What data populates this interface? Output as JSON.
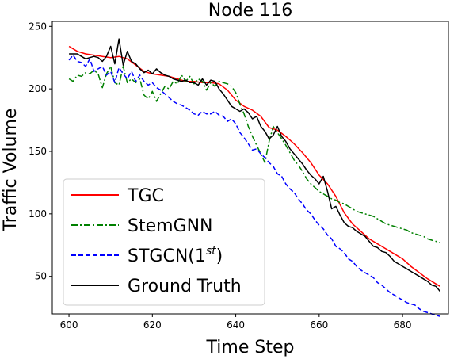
{
  "chart_data": {
    "type": "line",
    "title": "Node 116",
    "xlabel": "Time Step",
    "ylabel": "Traffic Volume",
    "xlim": [
      596,
      691
    ],
    "ylim": [
      20,
      254
    ],
    "xticks": [
      600,
      620,
      640,
      660,
      680
    ],
    "yticks": [
      50,
      100,
      150,
      200,
      250
    ],
    "grid": false,
    "legend_position": "lower-left",
    "series": [
      {
        "name": "TGC",
        "legend_label_main": "TGC",
        "color": "#ff0000",
        "dash": "solid",
        "x": [
          600,
          602,
          604,
          606,
          608,
          610,
          612,
          614,
          616,
          618,
          620,
          622,
          624,
          626,
          628,
          630,
          632,
          634,
          636,
          638,
          640,
          642,
          644,
          646,
          648,
          650,
          652,
          654,
          656,
          658,
          660,
          662,
          664,
          666,
          668,
          670,
          672,
          674,
          676,
          678,
          680,
          682,
          684,
          686,
          688,
          689
        ],
        "y": [
          234,
          230,
          228,
          227,
          226,
          225,
          226,
          224,
          219,
          214,
          212,
          211,
          210,
          208,
          206,
          206,
          205,
          205,
          204,
          199,
          191,
          186,
          183,
          178,
          169,
          167,
          162,
          156,
          149,
          141,
          131,
          124,
          114,
          101,
          92,
          86,
          80,
          76,
          72,
          68,
          64,
          58,
          53,
          48,
          44,
          42
        ]
      },
      {
        "name": "StemGNN",
        "legend_label_main": "StemGNN",
        "color": "#008000",
        "dash": "dashdot",
        "x": [
          600,
          601,
          602,
          603,
          604,
          605,
          606,
          607,
          608,
          609,
          610,
          611,
          612,
          613,
          614,
          615,
          616,
          617,
          618,
          619,
          620,
          621,
          622,
          623,
          624,
          625,
          626,
          627,
          628,
          629,
          630,
          631,
          632,
          633,
          634,
          635,
          636,
          637,
          638,
          639,
          640,
          641,
          642,
          643,
          644,
          645,
          646,
          647,
          648,
          649,
          650,
          651,
          652,
          653,
          654,
          655,
          656,
          657,
          658,
          659,
          660,
          661,
          662,
          663,
          664,
          665,
          666,
          667,
          668,
          669,
          670,
          671,
          672,
          673,
          674,
          675,
          676,
          677,
          678,
          679,
          680,
          681,
          682,
          683,
          684,
          685,
          686,
          687,
          688,
          689
        ],
        "y": [
          208,
          206,
          211,
          210,
          213,
          212,
          215,
          212,
          201,
          212,
          218,
          205,
          203,
          218,
          205,
          208,
          205,
          208,
          195,
          192,
          198,
          190,
          196,
          202,
          200,
          206,
          204,
          211,
          206,
          210,
          204,
          208,
          206,
          199,
          205,
          202,
          206,
          205,
          204,
          202,
          197,
          188,
          180,
          170,
          162,
          155,
          148,
          141,
          158,
          170,
          165,
          160,
          155,
          149,
          143,
          139,
          134,
          128,
          124,
          121,
          118,
          116,
          114,
          112,
          111,
          109,
          108,
          106,
          104,
          102,
          101,
          100,
          99,
          98,
          96,
          94,
          92,
          91,
          90,
          89,
          88,
          87,
          85,
          84,
          83,
          82,
          80,
          79,
          78,
          77
        ]
      },
      {
        "name": "STGCN(1st)",
        "legend_label_main": "STGCN(1",
        "legend_label_sup": "st",
        "legend_label_end": ")",
        "color": "#0000ff",
        "dash": "dashed",
        "x": [
          600,
          601,
          602,
          603,
          604,
          605,
          606,
          607,
          608,
          609,
          610,
          611,
          612,
          613,
          614,
          615,
          616,
          617,
          618,
          619,
          620,
          621,
          622,
          623,
          624,
          625,
          626,
          627,
          628,
          629,
          630,
          631,
          632,
          633,
          634,
          635,
          636,
          637,
          638,
          639,
          640,
          641,
          642,
          643,
          644,
          645,
          646,
          647,
          648,
          649,
          650,
          651,
          652,
          653,
          654,
          655,
          656,
          657,
          658,
          659,
          660,
          661,
          662,
          663,
          664,
          665,
          666,
          667,
          668,
          669,
          670,
          671,
          672,
          673,
          674,
          675,
          676,
          677,
          678,
          679,
          680,
          681,
          682,
          683,
          684,
          685,
          686,
          687,
          688,
          689
        ],
        "y": [
          223,
          227,
          222,
          221,
          218,
          224,
          214,
          216,
          218,
          211,
          214,
          205,
          217,
          212,
          208,
          214,
          206,
          211,
          206,
          203,
          205,
          201,
          199,
          196,
          193,
          190,
          188,
          187,
          185,
          183,
          180,
          179,
          182,
          180,
          180,
          182,
          179,
          178,
          174,
          176,
          172,
          165,
          161,
          156,
          151,
          152,
          148,
          145,
          141,
          138,
          132,
          130,
          124,
          120,
          117,
          112,
          108,
          103,
          100,
          95,
          91,
          88,
          83,
          80,
          74,
          72,
          69,
          64,
          62,
          58,
          55,
          53,
          51,
          49,
          45,
          43,
          40,
          37,
          35,
          33,
          31,
          29,
          28,
          27,
          24,
          22,
          21,
          20,
          19,
          18
        ]
      },
      {
        "name": "Ground Truth",
        "legend_label_main": "Ground Truth",
        "color": "#000000",
        "dash": "solid",
        "x": [
          600,
          601,
          602,
          603,
          604,
          605,
          606,
          607,
          608,
          609,
          610,
          611,
          612,
          613,
          614,
          615,
          616,
          617,
          618,
          619,
          620,
          621,
          622,
          623,
          624,
          625,
          626,
          627,
          628,
          629,
          630,
          631,
          632,
          633,
          634,
          635,
          636,
          637,
          638,
          639,
          640,
          641,
          642,
          643,
          644,
          645,
          646,
          647,
          648,
          649,
          650,
          651,
          652,
          653,
          654,
          655,
          656,
          657,
          658,
          659,
          660,
          661,
          662,
          663,
          664,
          665,
          666,
          667,
          668,
          669,
          670,
          671,
          672,
          673,
          674,
          675,
          676,
          677,
          678,
          679,
          680,
          681,
          682,
          683,
          684,
          685,
          686,
          687,
          688,
          689
        ],
        "y": [
          228,
          228,
          228,
          226,
          224,
          225,
          226,
          225,
          222,
          226,
          234,
          220,
          240,
          219,
          230,
          222,
          220,
          216,
          213,
          215,
          212,
          216,
          213,
          211,
          210,
          208,
          207,
          206,
          207,
          205,
          205,
          203,
          208,
          203,
          207,
          206,
          200,
          196,
          191,
          186,
          184,
          182,
          184,
          181,
          176,
          178,
          170,
          166,
          160,
          163,
          170,
          162,
          158,
          152,
          148,
          144,
          140,
          135,
          131,
          128,
          124,
          130,
          118,
          104,
          106,
          99,
          93,
          90,
          89,
          86,
          84,
          82,
          78,
          74,
          73,
          70,
          69,
          66,
          62,
          60,
          58,
          56,
          54,
          52,
          50,
          48,
          46,
          43,
          42,
          38
        ]
      }
    ]
  }
}
